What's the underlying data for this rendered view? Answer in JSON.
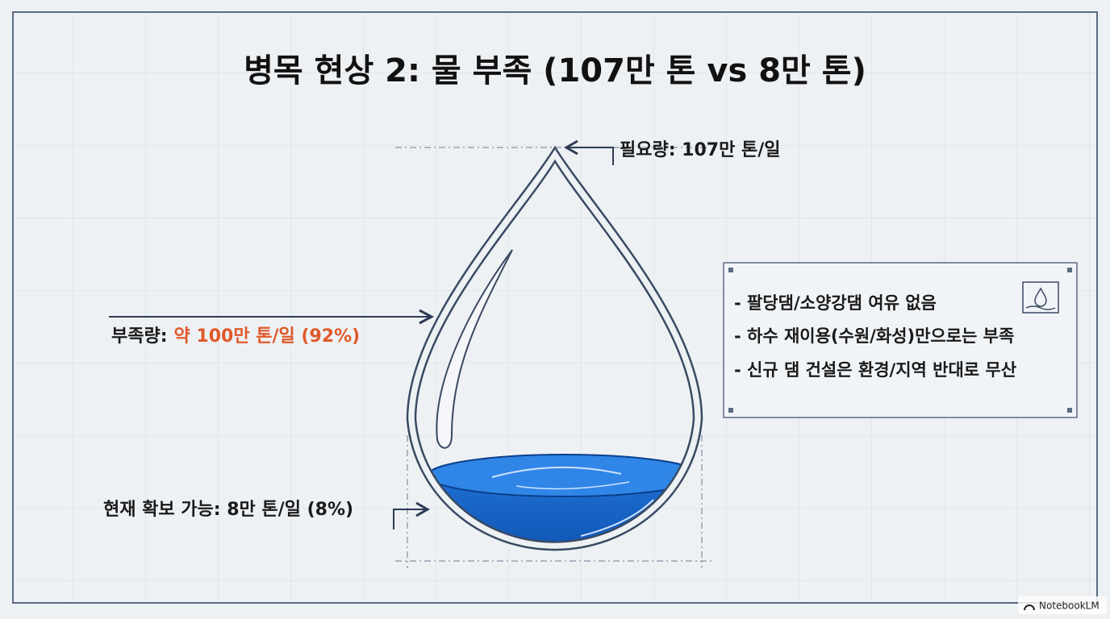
{
  "title": "병목 현상 2: 물 부족 (107만 톤 vs 8만 톤)",
  "labels": {
    "required": "필요량: 107만 톤/일",
    "shortage": {
      "prefix": "부족량:",
      "value": "약 100만 톤/일 (92%)"
    },
    "current": "현재 확보 가능: 8만 톤/일 (8%)"
  },
  "notes": [
    "- 팔당댐/소양강댐 여유 없음",
    "- 하수 재이용(수원/화성)만으로는 부족",
    "- 신규 댐 건설은 환경/지역 반대로 무산"
  ],
  "watermark": "NotebookLM"
}
